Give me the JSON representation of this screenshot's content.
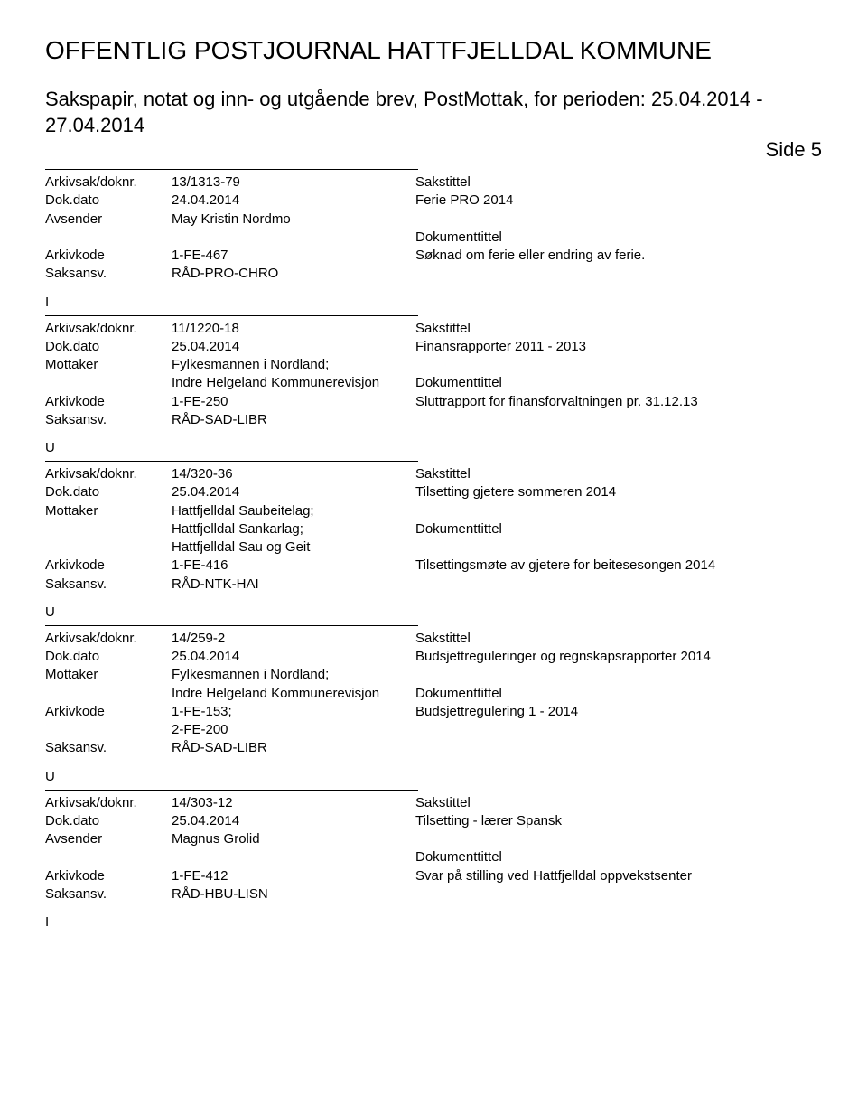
{
  "header": {
    "main_title": "OFFENTLIG POSTJOURNAL HATTFJELLDAL KOMMUNE",
    "subtitle": "Sakspapir, notat og inn- og utgående brev, PostMottak, for perioden: 25.04.2014 - 27.04.2014",
    "page_side": "Side 5"
  },
  "labels": {
    "arkivsak": "Arkivsak/doknr.",
    "dokdato": "Dok.dato",
    "avsender": "Avsender",
    "mottaker": "Mottaker",
    "arkivkode": "Arkivkode",
    "saksansv": "Saksansv.",
    "sakstittel": "Sakstittel",
    "dokumenttittel": "Dokumenttittel"
  },
  "records": [
    {
      "marker_before": "",
      "arkivsak": "13/1313-79",
      "dokdato": "24.04.2014",
      "party_label": "Avsender",
      "party": "May Kristin Nordmo",
      "arkivkode": "1-FE-467",
      "saksansv": "RÅD-PRO-CHRO",
      "sakstittel_value": "Ferie PRO 2014",
      "dokumenttittel_value": "Søknad om ferie eller endring av ferie.",
      "party_lines": 1,
      "arkivkode_lines": 1
    },
    {
      "marker_before": "I",
      "arkivsak": "11/1220-18",
      "dokdato": "25.04.2014",
      "party_label": "Mottaker",
      "party": "Fylkesmannen i Nordland;\nIndre Helgeland Kommunerevisjon",
      "arkivkode": "1-FE-250",
      "saksansv": "RÅD-SAD-LIBR",
      "sakstittel_value": "Finansrapporter 2011 - 2013",
      "dokumenttittel_value": "Sluttrapport for finansforvaltningen pr. 31.12.13",
      "party_lines": 2,
      "arkivkode_lines": 1
    },
    {
      "marker_before": "U",
      "arkivsak": "14/320-36",
      "dokdato": "25.04.2014",
      "party_label": "Mottaker",
      "party": "Hattfjelldal Saubeitelag;\nHattfjelldal Sankarlag;\nHattfjelldal Sau og Geit",
      "arkivkode": "1-FE-416",
      "saksansv": "RÅD-NTK-HAI",
      "sakstittel_value": "Tilsetting gjetere sommeren 2014",
      "dokumenttittel_value": "Tilsettingsmøte av gjetere for beitesesongen 2014",
      "party_lines": 3,
      "arkivkode_lines": 1
    },
    {
      "marker_before": "U",
      "arkivsak": "14/259-2",
      "dokdato": "25.04.2014",
      "party_label": "Mottaker",
      "party": "Fylkesmannen i Nordland;\nIndre Helgeland Kommunerevisjon",
      "arkivkode": "1-FE-153;\n2-FE-200",
      "saksansv": "RÅD-SAD-LIBR",
      "sakstittel_value": "Budsjettreguleringer og regnskapsrapporter 2014",
      "dokumenttittel_value": "Budsjettregulering 1 - 2014",
      "party_lines": 2,
      "arkivkode_lines": 2
    },
    {
      "marker_before": "U",
      "arkivsak": "14/303-12",
      "dokdato": "25.04.2014",
      "party_label": "Avsender",
      "party": "Magnus Grolid",
      "arkivkode": "1-FE-412",
      "saksansv": "RÅD-HBU-LISN",
      "sakstittel_value": "Tilsetting - lærer Spansk",
      "dokumenttittel_value": "Svar på stilling ved Hattfjelldal oppvekstsenter",
      "party_lines": 1,
      "arkivkode_lines": 1
    }
  ],
  "trailing_marker": "I"
}
